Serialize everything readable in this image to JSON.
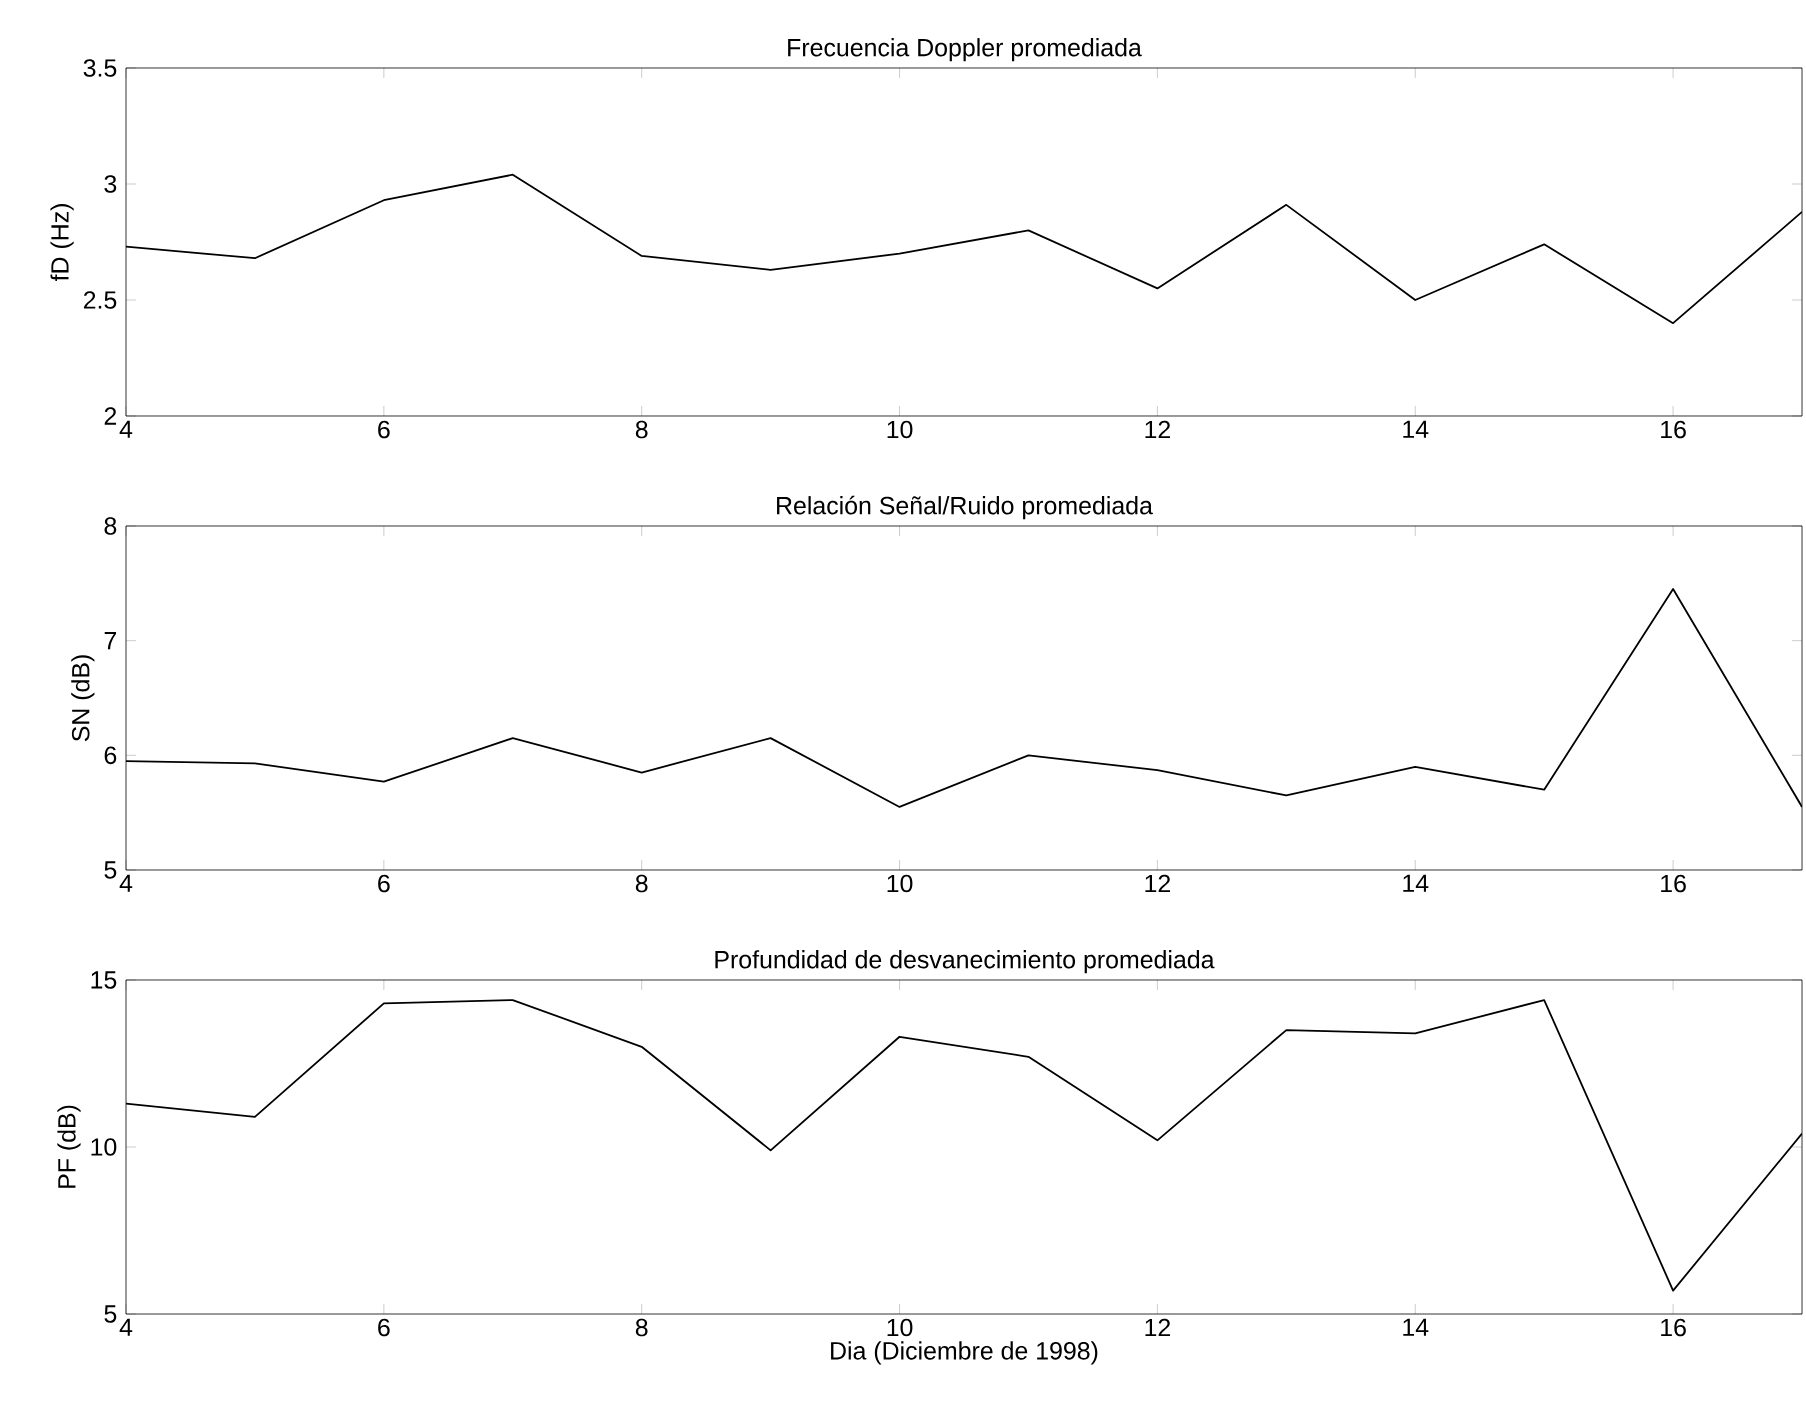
{
  "chart_data": [
    {
      "type": "line",
      "title": "Frecuencia Doppler promediada",
      "ylabel": "fD (Hz)",
      "x": [
        4,
        5,
        6,
        7,
        8,
        9,
        10,
        11,
        12,
        13,
        14,
        15,
        16,
        17
      ],
      "series": [
        {
          "color": "#000000",
          "values": [
            2.73,
            2.68,
            2.93,
            3.04,
            2.69,
            2.63,
            2.7,
            2.8,
            2.55,
            2.91,
            2.5,
            2.74,
            2.4,
            2.88
          ]
        }
      ],
      "xlim": [
        4,
        17
      ],
      "xticks": [
        4,
        6,
        8,
        10,
        12,
        14,
        16
      ],
      "ylim": [
        2,
        3.5
      ],
      "yticks": [
        2,
        2.5,
        3,
        3.5
      ],
      "grid": false
    },
    {
      "type": "line",
      "title": "Relación Señal/Ruido promediada",
      "ylabel": "SN (dB)",
      "x": [
        4,
        5,
        6,
        7,
        8,
        9,
        10,
        11,
        12,
        13,
        14,
        15,
        16,
        17
      ],
      "series": [
        {
          "color": "#000000",
          "values": [
            5.95,
            5.93,
            5.77,
            6.15,
            5.85,
            6.15,
            5.55,
            6.0,
            5.87,
            5.65,
            5.9,
            5.7,
            7.45,
            5.55
          ]
        }
      ],
      "xlim": [
        4,
        17
      ],
      "xticks": [
        4,
        6,
        8,
        10,
        12,
        14,
        16
      ],
      "ylim": [
        5,
        8
      ],
      "yticks": [
        5,
        6,
        7,
        8
      ],
      "grid": false
    },
    {
      "type": "line",
      "title": "Profundidad de desvanecimiento promediada",
      "xlabel": "Dia (Diciembre de 1998)",
      "ylabel": "PF (dB)",
      "x": [
        4,
        5,
        6,
        7,
        8,
        9,
        10,
        11,
        12,
        13,
        14,
        15,
        16,
        17
      ],
      "series": [
        {
          "color": "#000000",
          "values": [
            11.3,
            10.9,
            14.3,
            14.4,
            13.0,
            9.9,
            13.3,
            12.7,
            10.2,
            13.5,
            13.4,
            14.4,
            5.7,
            10.4
          ]
        }
      ],
      "xlim": [
        4,
        17
      ],
      "xticks": [
        4,
        6,
        8,
        10,
        12,
        14,
        16
      ],
      "ylim": [
        5,
        15
      ],
      "yticks": [
        5,
        10,
        15
      ],
      "grid": false
    }
  ]
}
